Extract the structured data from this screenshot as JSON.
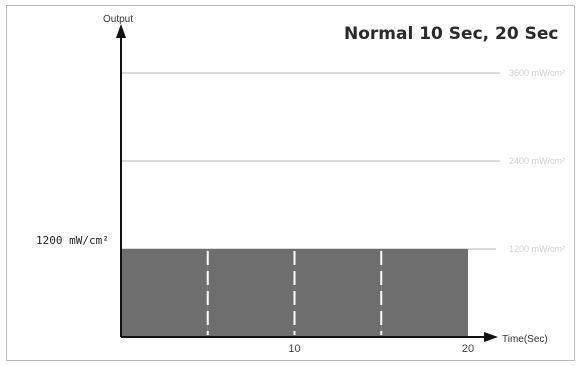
{
  "chart_data": {
    "type": "bar",
    "title": "Normal 10 Sec, 20 Sec",
    "ylabel": "Output",
    "xlabel": "Time(Sec)",
    "x_ticks": [
      10,
      20
    ],
    "xlim": [
      0,
      20
    ],
    "y_value_label": "1200 mW/cm²",
    "y_value": 1200,
    "ylim": [
      0,
      3600
    ],
    "reference_levels": [
      1200,
      2400,
      3600
    ],
    "segments": [
      {
        "start": 0,
        "end": 5
      },
      {
        "start": 5,
        "end": 10
      },
      {
        "start": 10,
        "end": 15
      },
      {
        "start": 15,
        "end": 20
      }
    ],
    "grid": false,
    "legend": "none"
  },
  "colors": {
    "bar": "#6e6e6e",
    "axis": "#111111",
    "level_line": "#b5b5b5",
    "divider": "#ffffff"
  }
}
